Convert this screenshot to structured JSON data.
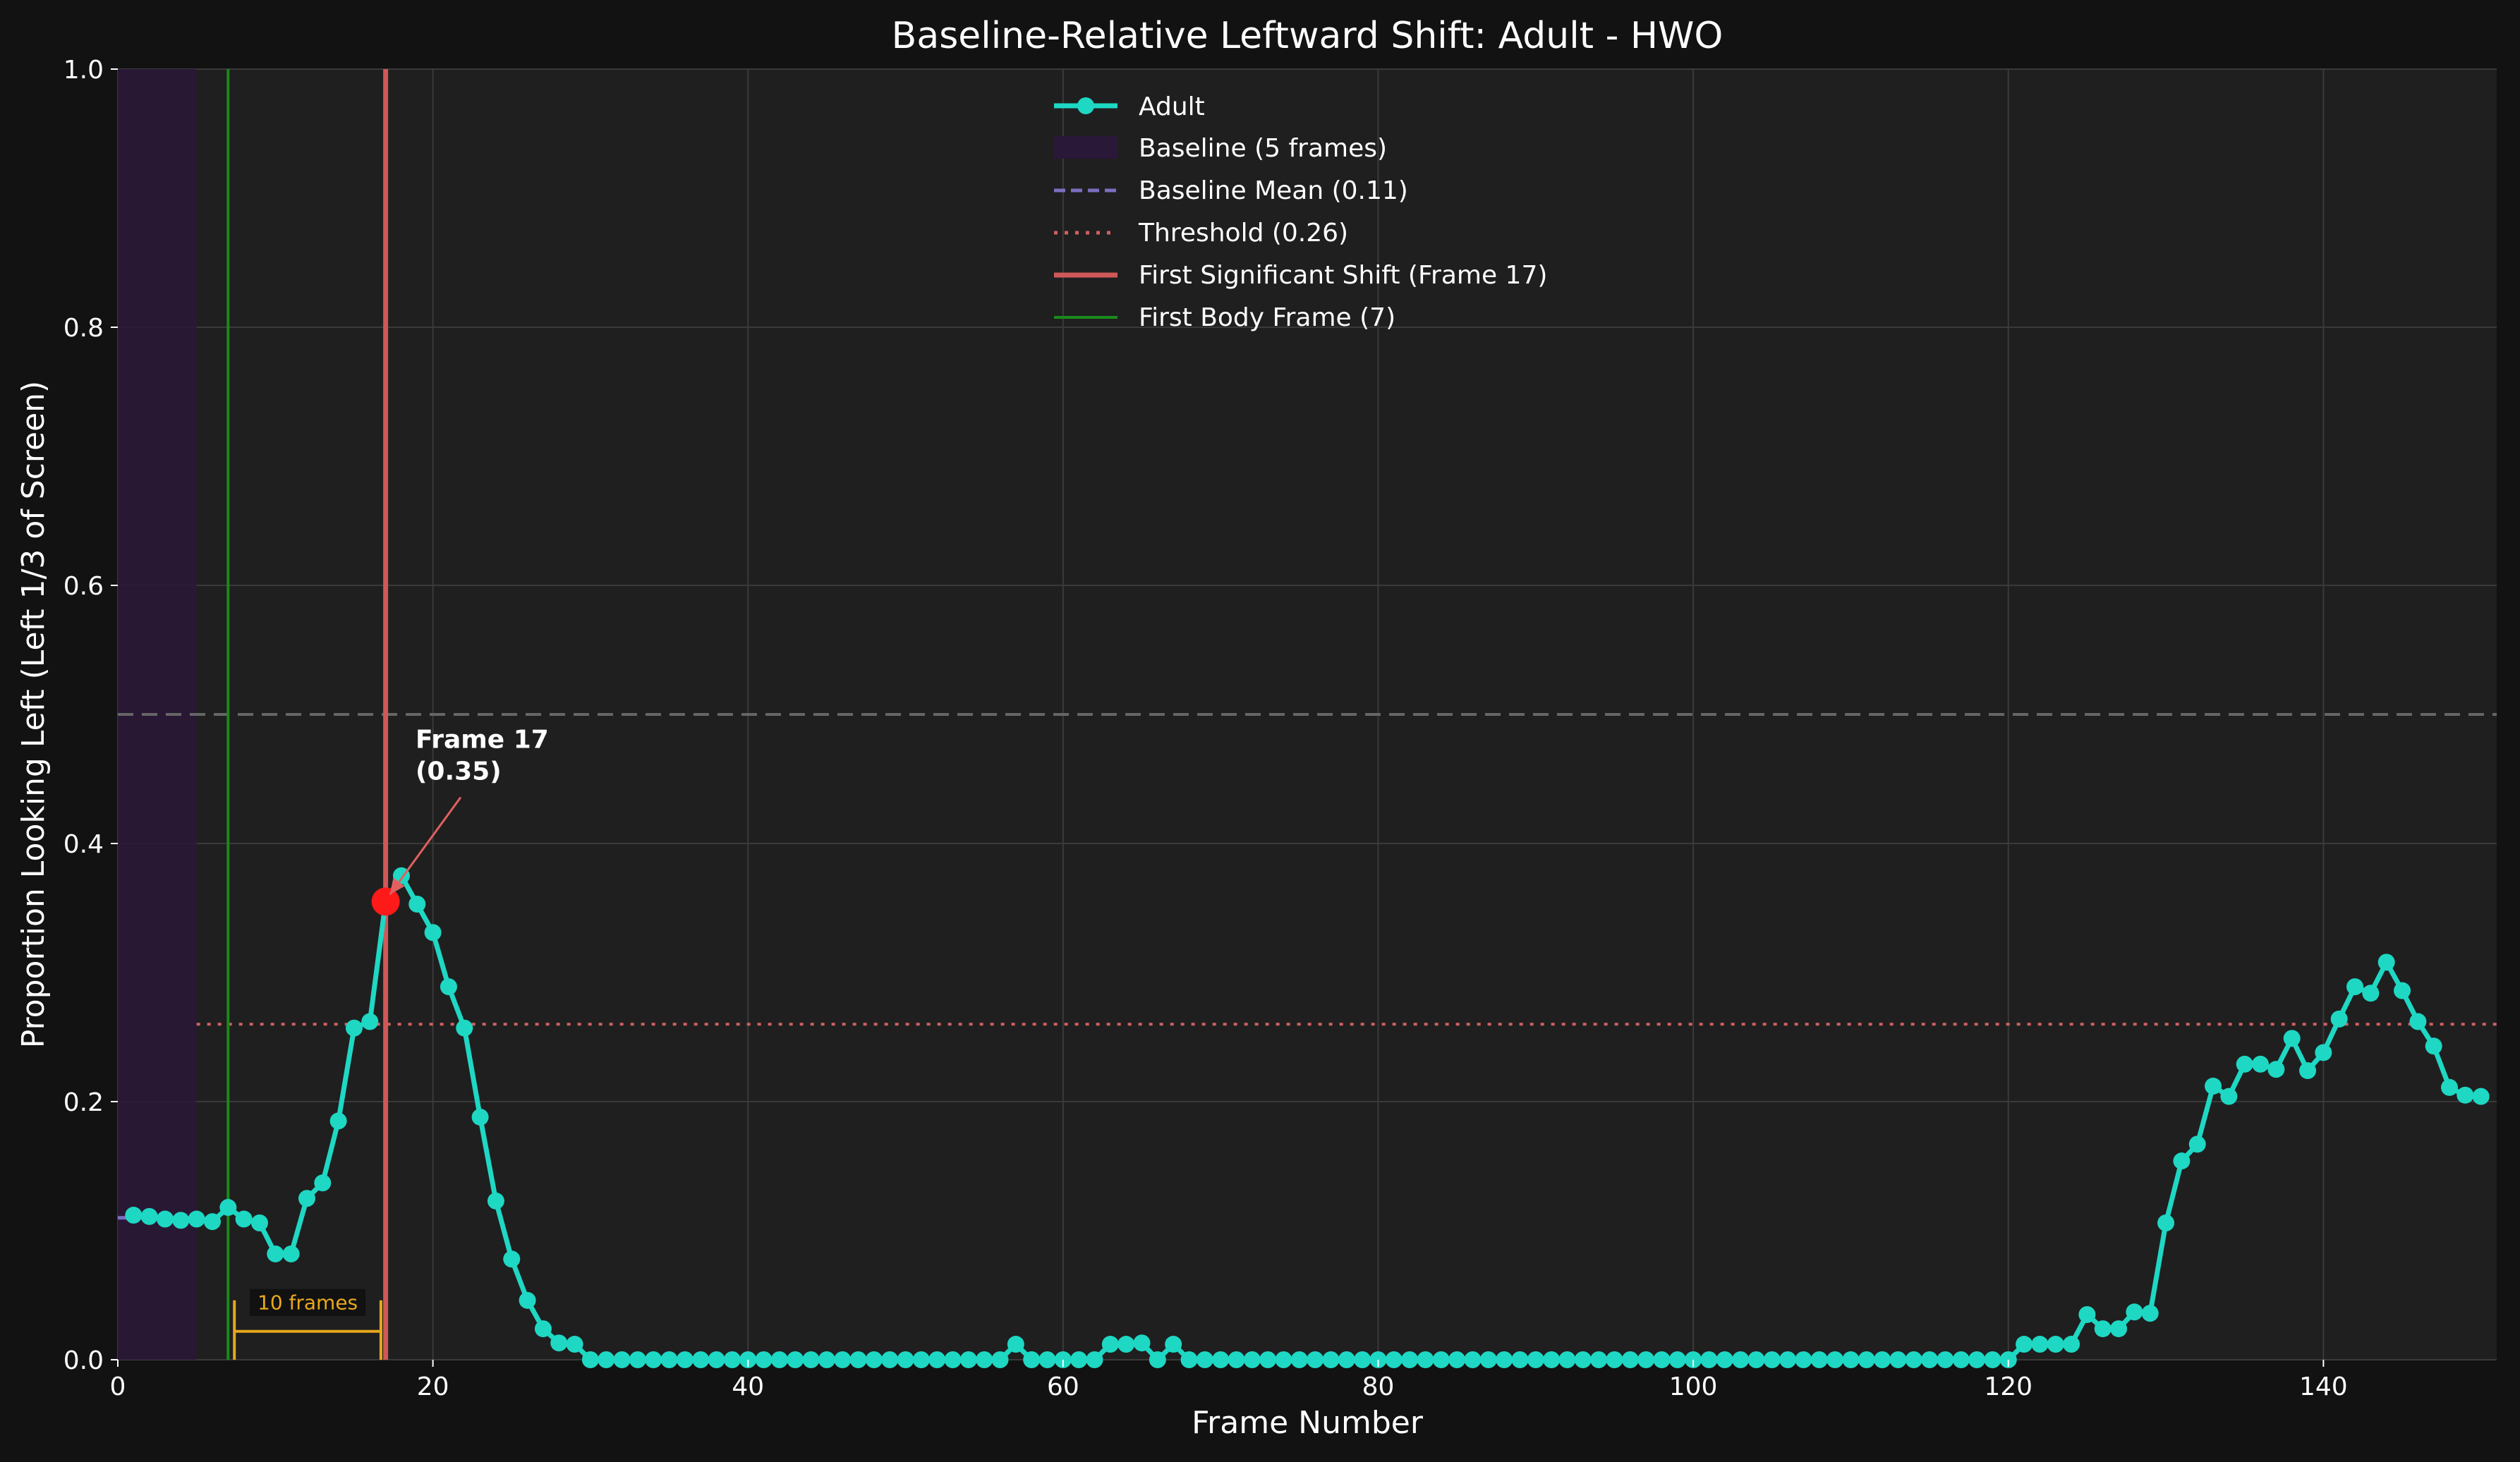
{
  "chart_data": {
    "type": "line",
    "title": "Baseline-Relative Leftward Shift: Adult - HWO",
    "xlabel": "Frame Number",
    "ylabel": "Proportion Looking Left (Left 1/3 of Screen)",
    "xlim": [
      0,
      151
    ],
    "ylim": [
      0,
      1.0
    ],
    "xticks": [
      "0",
      "20",
      "40",
      "60",
      "80",
      "100",
      "120",
      "140"
    ],
    "yticks": [
      "0.0",
      "0.2",
      "0.4",
      "0.6",
      "0.8",
      "1.0"
    ],
    "grid": true,
    "legend_position": "top-center",
    "colors": {
      "series": "#1ed8c4",
      "baseline_region": "#2a1838",
      "baseline_mean": "#7a6fc0",
      "threshold": "#d06060",
      "first_shift": "#d05858",
      "first_body": "#1a8a1a",
      "reference": "#666666",
      "marker": "#ff1a1a",
      "bracket": "#e8a81c"
    },
    "series": [
      {
        "name": "Adult",
        "x": [
          1,
          2,
          3,
          4,
          5,
          6,
          7,
          8,
          9,
          10,
          11,
          12,
          13,
          14,
          15,
          16,
          17,
          18,
          19,
          20,
          21,
          22,
          23,
          24,
          25,
          26,
          27,
          28,
          29,
          30,
          31,
          32,
          33,
          34,
          35,
          36,
          37,
          38,
          39,
          40,
          41,
          42,
          43,
          44,
          45,
          46,
          47,
          48,
          49,
          50,
          51,
          52,
          53,
          54,
          55,
          56,
          57,
          58,
          59,
          60,
          61,
          62,
          63,
          64,
          65,
          66,
          67,
          68,
          69,
          70,
          71,
          72,
          73,
          74,
          75,
          76,
          77,
          78,
          79,
          80,
          81,
          82,
          83,
          84,
          85,
          86,
          87,
          88,
          89,
          90,
          91,
          92,
          93,
          94,
          95,
          96,
          97,
          98,
          99,
          100,
          101,
          102,
          103,
          104,
          105,
          106,
          107,
          108,
          109,
          110,
          111,
          112,
          113,
          114,
          115,
          116,
          117,
          118,
          119,
          120,
          121,
          122,
          123,
          124,
          125,
          126,
          127,
          128,
          129,
          130,
          131,
          132,
          133,
          134,
          135,
          136,
          137,
          138,
          139,
          140,
          141,
          142,
          143,
          144,
          145,
          146,
          147,
          148,
          149,
          150
        ],
        "y": [
          0.112,
          0.111,
          0.109,
          0.108,
          0.109,
          0.107,
          0.118,
          0.109,
          0.106,
          0.082,
          0.082,
          0.125,
          0.137,
          0.185,
          0.257,
          0.262,
          0.355,
          0.375,
          0.353,
          0.331,
          0.289,
          0.257,
          0.188,
          0.123,
          0.078,
          0.046,
          0.024,
          0.013,
          0.012,
          0,
          0,
          0,
          0,
          0,
          0,
          0,
          0,
          0,
          0,
          0,
          0,
          0,
          0,
          0,
          0,
          0,
          0,
          0,
          0,
          0,
          0,
          0,
          0,
          0,
          0,
          0,
          0.012,
          0,
          0,
          0,
          0,
          0,
          0.012,
          0.012,
          0.013,
          0,
          0.012,
          0,
          0,
          0,
          0,
          0,
          0,
          0,
          0,
          0,
          0,
          0,
          0,
          0,
          0,
          0,
          0,
          0,
          0,
          0,
          0,
          0,
          0,
          0,
          0,
          0,
          0,
          0,
          0,
          0,
          0,
          0,
          0,
          0,
          0,
          0,
          0,
          0,
          0,
          0,
          0,
          0,
          0,
          0,
          0,
          0,
          0,
          0,
          0,
          0,
          0,
          0,
          0,
          0,
          0.012,
          0.012,
          0.012,
          0.012,
          0.035,
          0.024,
          0.024,
          0.037,
          0.036,
          0.106,
          0.154,
          0.167,
          0.212,
          0.204,
          0.229,
          0.229,
          0.225,
          0.249,
          0.224,
          0.238,
          0.264,
          0.289,
          0.284,
          0.308,
          0.286,
          0.262,
          0.243,
          0.211,
          0.205,
          0.204
        ]
      }
    ],
    "baseline": {
      "label": "Baseline (5 frames)",
      "x_start": 0,
      "x_end": 5
    },
    "baseline_mean": {
      "label": "Baseline Mean (0.11)",
      "value": 0.11,
      "x_start": 0,
      "x_end": 5
    },
    "threshold": {
      "label": "Threshold (0.26)",
      "value": 0.26,
      "x_start": 5,
      "x_end": 151
    },
    "first_shift": {
      "label": "First Significant Shift (Frame 17)",
      "x": 17,
      "y": 0.355
    },
    "first_body": {
      "label": "First Body Frame (7)",
      "x": 7
    },
    "reference_line": {
      "value": 0.5
    },
    "annotation": {
      "line1": "Frame 17",
      "line2": "(0.35)",
      "text_x": 18,
      "text_y": 0.45
    },
    "bracket": {
      "label": "10 frames",
      "x_start": 7.4,
      "x_end": 16.7,
      "y": 0.022
    }
  }
}
